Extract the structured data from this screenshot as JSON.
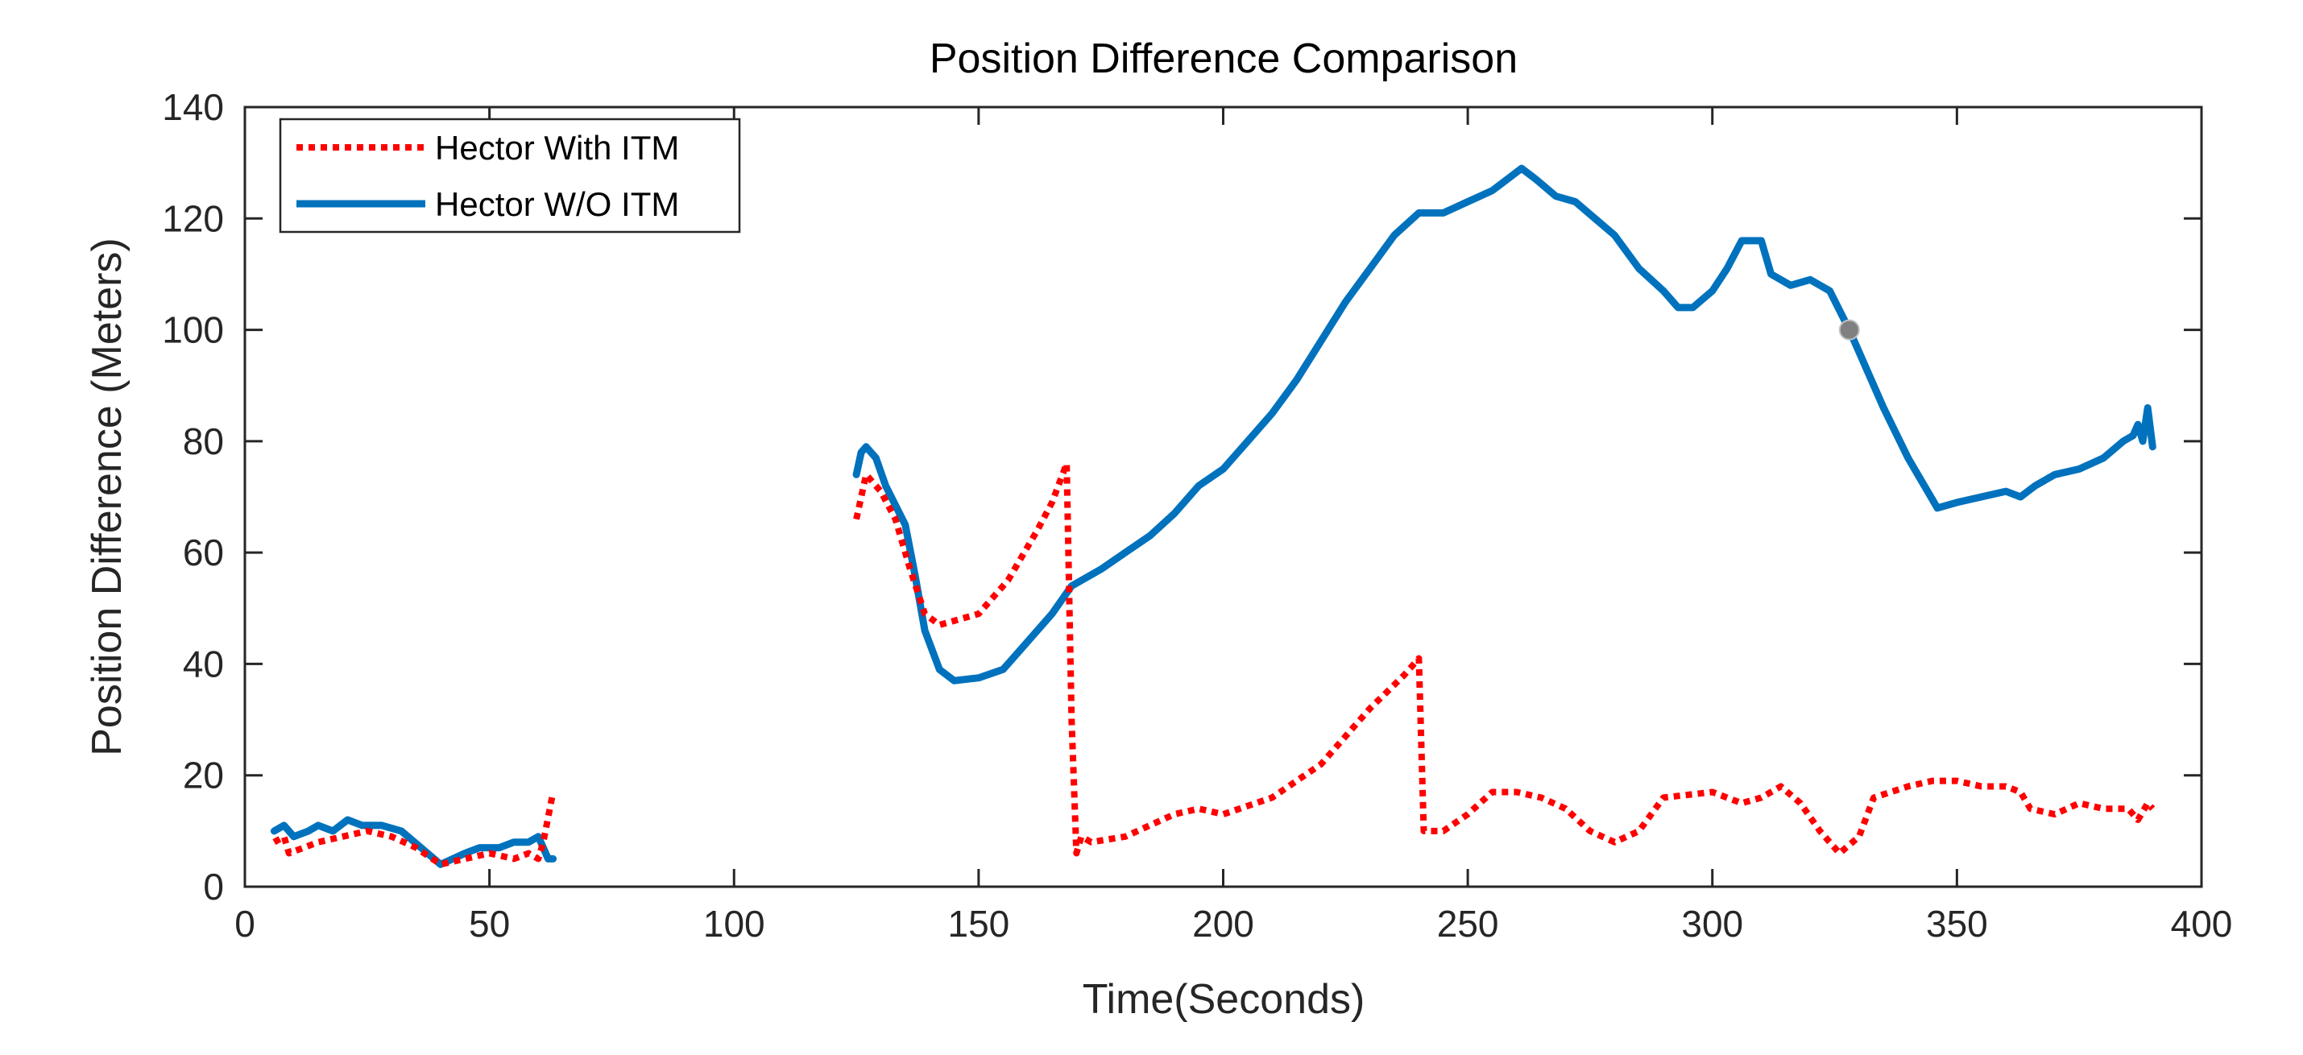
{
  "chart_data": {
    "type": "line",
    "title": "Position Difference Comparison",
    "xlabel": "Time(Seconds)",
    "ylabel": "Position Difference (Meters)",
    "xlim": [
      0,
      400
    ],
    "ylim": [
      0,
      140
    ],
    "xticks": [
      0,
      50,
      100,
      150,
      200,
      250,
      300,
      350,
      400
    ],
    "yticks": [
      0,
      20,
      40,
      60,
      80,
      100,
      120,
      140
    ],
    "grid": false,
    "legend_position": "top-left",
    "series": [
      {
        "name": "Hector With ITM",
        "color": "#ff0000",
        "style": "dotted",
        "segments": [
          [
            [
              6,
              8
            ],
            [
              8,
              9
            ],
            [
              9,
              6
            ],
            [
              12,
              7
            ],
            [
              15,
              8
            ],
            [
              20,
              9
            ],
            [
              25,
              10
            ],
            [
              30,
              9
            ],
            [
              35,
              7
            ],
            [
              40,
              4
            ],
            [
              45,
              5
            ],
            [
              50,
              6
            ],
            [
              55,
              5
            ],
            [
              58,
              6
            ],
            [
              60,
              5
            ],
            [
              61,
              8
            ],
            [
              63,
              17
            ]
          ],
          [
            [
              125,
              66
            ],
            [
              127,
              74
            ],
            [
              130,
              71
            ],
            [
              133,
              66
            ],
            [
              136,
              57
            ],
            [
              139,
              49
            ],
            [
              142,
              47
            ],
            [
              150,
              49
            ],
            [
              156,
              55
            ],
            [
              162,
              64
            ],
            [
              165,
              69
            ],
            [
              168,
              76
            ],
            [
              169,
              30
            ],
            [
              170,
              6
            ],
            [
              171,
              9
            ],
            [
              173,
              8
            ],
            [
              180,
              9
            ],
            [
              185,
              11
            ],
            [
              190,
              13
            ],
            [
              195,
              14
            ],
            [
              200,
              13
            ],
            [
              210,
              16
            ],
            [
              220,
              22
            ],
            [
              230,
              32
            ],
            [
              237,
              38
            ],
            [
              240,
              41
            ],
            [
              241,
              10
            ],
            [
              245,
              10
            ],
            [
              250,
              13
            ],
            [
              255,
              17
            ],
            [
              260,
              17
            ],
            [
              265,
              16
            ],
            [
              270,
              14
            ],
            [
              275,
              10
            ],
            [
              280,
              8
            ],
            [
              285,
              10
            ],
            [
              290,
              16
            ],
            [
              300,
              17
            ],
            [
              306,
              15
            ],
            [
              310,
              16
            ],
            [
              314,
              18
            ],
            [
              318,
              15
            ],
            [
              322,
              10
            ],
            [
              326,
              6
            ],
            [
              330,
              9
            ],
            [
              333,
              16
            ],
            [
              340,
              18
            ],
            [
              345,
              19
            ],
            [
              350,
              19
            ],
            [
              355,
              18
            ],
            [
              360,
              18
            ],
            [
              363,
              17
            ],
            [
              365,
              14
            ],
            [
              370,
              13
            ],
            [
              375,
              15
            ],
            [
              380,
              14
            ],
            [
              385,
              14
            ],
            [
              387,
              12
            ],
            [
              389,
              15
            ],
            [
              390,
              14
            ]
          ]
        ]
      },
      {
        "name": "Hector W/O ITM",
        "color": "#0072bd",
        "style": "solid",
        "segments": [
          [
            [
              6,
              10
            ],
            [
              8,
              11
            ],
            [
              10,
              9
            ],
            [
              13,
              10
            ],
            [
              15,
              11
            ],
            [
              18,
              10
            ],
            [
              21,
              12
            ],
            [
              24,
              11
            ],
            [
              28,
              11
            ],
            [
              32,
              10
            ],
            [
              36,
              7
            ],
            [
              40,
              4
            ],
            [
              45,
              6
            ],
            [
              48,
              7
            ],
            [
              52,
              7
            ],
            [
              55,
              8
            ],
            [
              58,
              8
            ],
            [
              60,
              9
            ],
            [
              61,
              7
            ],
            [
              62,
              5
            ],
            [
              63,
              5
            ]
          ],
          [
            [
              125,
              74
            ],
            [
              126,
              78
            ],
            [
              127,
              79
            ],
            [
              129,
              77
            ],
            [
              131,
              72
            ],
            [
              135,
              65
            ],
            [
              137,
              56
            ],
            [
              139,
              46
            ],
            [
              142,
              39
            ],
            [
              145,
              37
            ],
            [
              150,
              37.5
            ],
            [
              155,
              39
            ],
            [
              160,
              44
            ],
            [
              165,
              49
            ],
            [
              169,
              54
            ],
            [
              175,
              57
            ],
            [
              180,
              60
            ],
            [
              185,
              63
            ],
            [
              190,
              67
            ],
            [
              195,
              72
            ],
            [
              200,
              75
            ],
            [
              205,
              80
            ],
            [
              210,
              85
            ],
            [
              215,
              91
            ],
            [
              220,
              98
            ],
            [
              225,
              105
            ],
            [
              230,
              111
            ],
            [
              235,
              117
            ],
            [
              240,
              121
            ],
            [
              245,
              121
            ],
            [
              250,
              123
            ],
            [
              255,
              125
            ],
            [
              258,
              127
            ],
            [
              261,
              129
            ],
            [
              264,
              127
            ],
            [
              268,
              124
            ],
            [
              272,
              123
            ],
            [
              276,
              120
            ],
            [
              280,
              117
            ],
            [
              285,
              111
            ],
            [
              290,
              107
            ],
            [
              293,
              104
            ],
            [
              296,
              104
            ],
            [
              300,
              107
            ],
            [
              303,
              111
            ],
            [
              306,
              116
            ],
            [
              310,
              116
            ],
            [
              312,
              110
            ],
            [
              316,
              108
            ],
            [
              320,
              109
            ],
            [
              324,
              107
            ],
            [
              328,
              100
            ],
            [
              330,
              96
            ],
            [
              335,
              86
            ],
            [
              340,
              77
            ],
            [
              346,
              68
            ],
            [
              350,
              69
            ],
            [
              355,
              70
            ],
            [
              360,
              71
            ],
            [
              363,
              70
            ],
            [
              366,
              72
            ],
            [
              370,
              74
            ],
            [
              375,
              75
            ],
            [
              380,
              77
            ],
            [
              384,
              80
            ],
            [
              386,
              81
            ],
            [
              387,
              83
            ],
            [
              388,
              80
            ],
            [
              389,
              86
            ],
            [
              390,
              79
            ]
          ]
        ]
      }
    ],
    "markers": [
      {
        "x": 328,
        "y": 100,
        "color": "#808080"
      }
    ]
  }
}
